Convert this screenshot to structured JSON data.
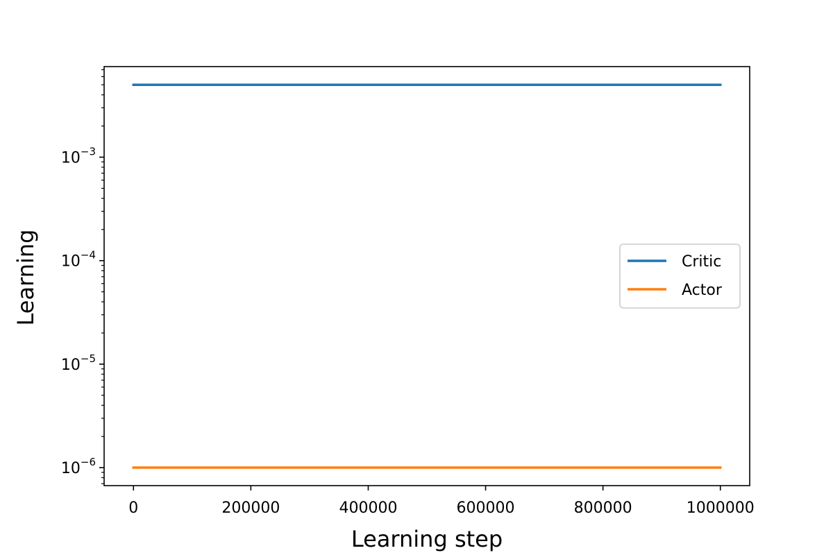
{
  "chart_data": {
    "type": "line",
    "title": "",
    "xlabel": "Learning step",
    "ylabel": "Learning",
    "xlim": [
      -50000,
      1050000
    ],
    "ylim": [
      6.7e-07,
      0.0075
    ],
    "yscale": "log",
    "xticks": [
      {
        "value": 0,
        "label": "0"
      },
      {
        "value": 200000,
        "label": "200000"
      },
      {
        "value": 400000,
        "label": "400000"
      },
      {
        "value": 600000,
        "label": "600000"
      },
      {
        "value": 800000,
        "label": "800000"
      },
      {
        "value": 1000000,
        "label": "1000000"
      }
    ],
    "yticks": [
      {
        "value": 1e-06,
        "base": "10",
        "exp": "−6"
      },
      {
        "value": 1e-05,
        "base": "10",
        "exp": "−5"
      },
      {
        "value": 0.0001,
        "base": "10",
        "exp": "−4"
      },
      {
        "value": 0.001,
        "base": "10",
        "exp": "−3"
      }
    ],
    "series": [
      {
        "name": "Critic",
        "color": "#1f77b4",
        "x": [
          0,
          1000000
        ],
        "y": [
          0.005,
          0.005
        ]
      },
      {
        "name": "Actor",
        "color": "#ff7f0e",
        "x": [
          0,
          1000000
        ],
        "y": [
          1e-06,
          1e-06
        ]
      }
    ],
    "legend": {
      "position": "center-right"
    },
    "grid": false
  }
}
